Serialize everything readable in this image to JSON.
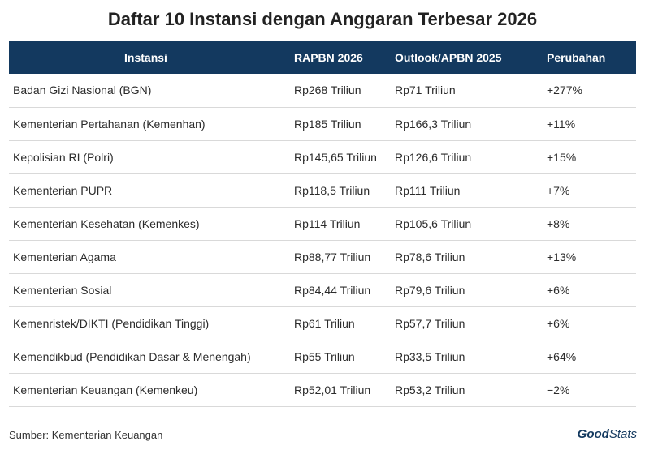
{
  "title": "Daftar 10 Instansi dengan Anggaran Terbesar 2026",
  "columns": [
    "Instansi",
    "RAPBN 2026",
    "Outlook/APBN 2025",
    "Perubahan"
  ],
  "rows": [
    [
      "Badan Gizi Nasional (BGN)",
      "Rp268 Triliun",
      "Rp71 Triliun",
      "+277%"
    ],
    [
      "Kementerian Pertahanan (Kemenhan)",
      "Rp185 Triliun",
      "Rp166,3 Triliun",
      "+11%"
    ],
    [
      "Kepolisian RI (Polri)",
      "Rp145,65 Triliun",
      "Rp126,6 Triliun",
      "+15%"
    ],
    [
      "Kementerian PUPR",
      "Rp118,5 Triliun",
      "Rp111 Triliun",
      "+7%"
    ],
    [
      "Kementerian Kesehatan (Kemenkes)",
      "Rp114 Triliun",
      "Rp105,6 Triliun",
      "+8%"
    ],
    [
      "Kementerian Agama",
      "Rp88,77 Triliun",
      "Rp78,6 Triliun",
      "+13%"
    ],
    [
      "Kementerian Sosial",
      "Rp84,44 Triliun",
      "Rp79,6 Triliun",
      "+6%"
    ],
    [
      "Kemenristek/DIKTI (Pendidikan Tinggi)",
      "Rp61 Triliun",
      "Rp57,7 Triliun",
      "+6%"
    ],
    [
      "Kemendikbud (Pendidikan Dasar & Menengah)",
      "Rp55 Triliun",
      "Rp33,5 Triliun",
      "+64%"
    ],
    [
      "Kementerian Keuangan (Kemenkeu)",
      "Rp52,01 Triliun",
      "Rp53,2 Triliun",
      "−2%"
    ]
  ],
  "source": "Sumber: Kementerian Keuangan",
  "logo": {
    "part1": "Good",
    "part2": "Stats"
  },
  "colors": {
    "header_bg": "#13395f",
    "header_text": "#ffffff",
    "row_divider": "#d9d9d9"
  }
}
